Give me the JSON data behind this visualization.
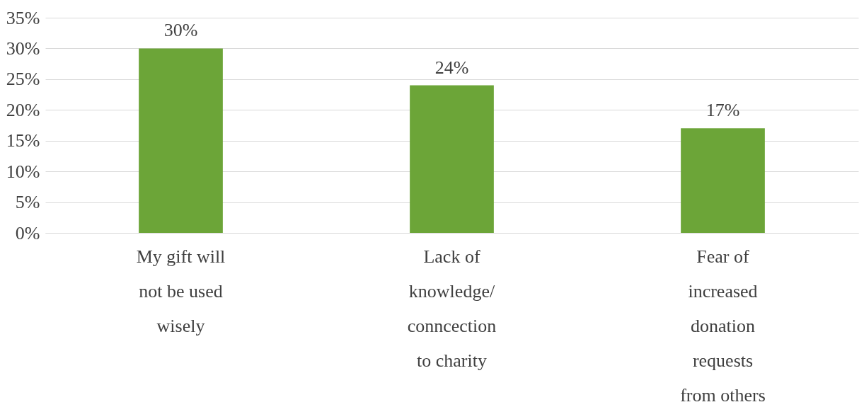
{
  "chart_data": {
    "type": "bar",
    "categories": [
      "My gift will not be used wisely",
      "Lack of knowledge/ conncection to charity",
      "Fear of increased donation requests from others"
    ],
    "values": [
      30,
      24,
      17
    ],
    "value_labels": [
      "30%",
      "24%",
      "17%"
    ],
    "color": "#6ca538",
    "ylim": [
      0,
      35
    ],
    "yticks": [
      {
        "value": 0,
        "label": "0%"
      },
      {
        "value": 5,
        "label": "5%"
      },
      {
        "value": 10,
        "label": "10%"
      },
      {
        "value": 15,
        "label": "15%"
      },
      {
        "value": 20,
        "label": "20%"
      },
      {
        "value": 25,
        "label": "25%"
      },
      {
        "value": 30,
        "label": "30%"
      },
      {
        "value": 35,
        "label": "35%"
      }
    ],
    "grid": "y"
  }
}
